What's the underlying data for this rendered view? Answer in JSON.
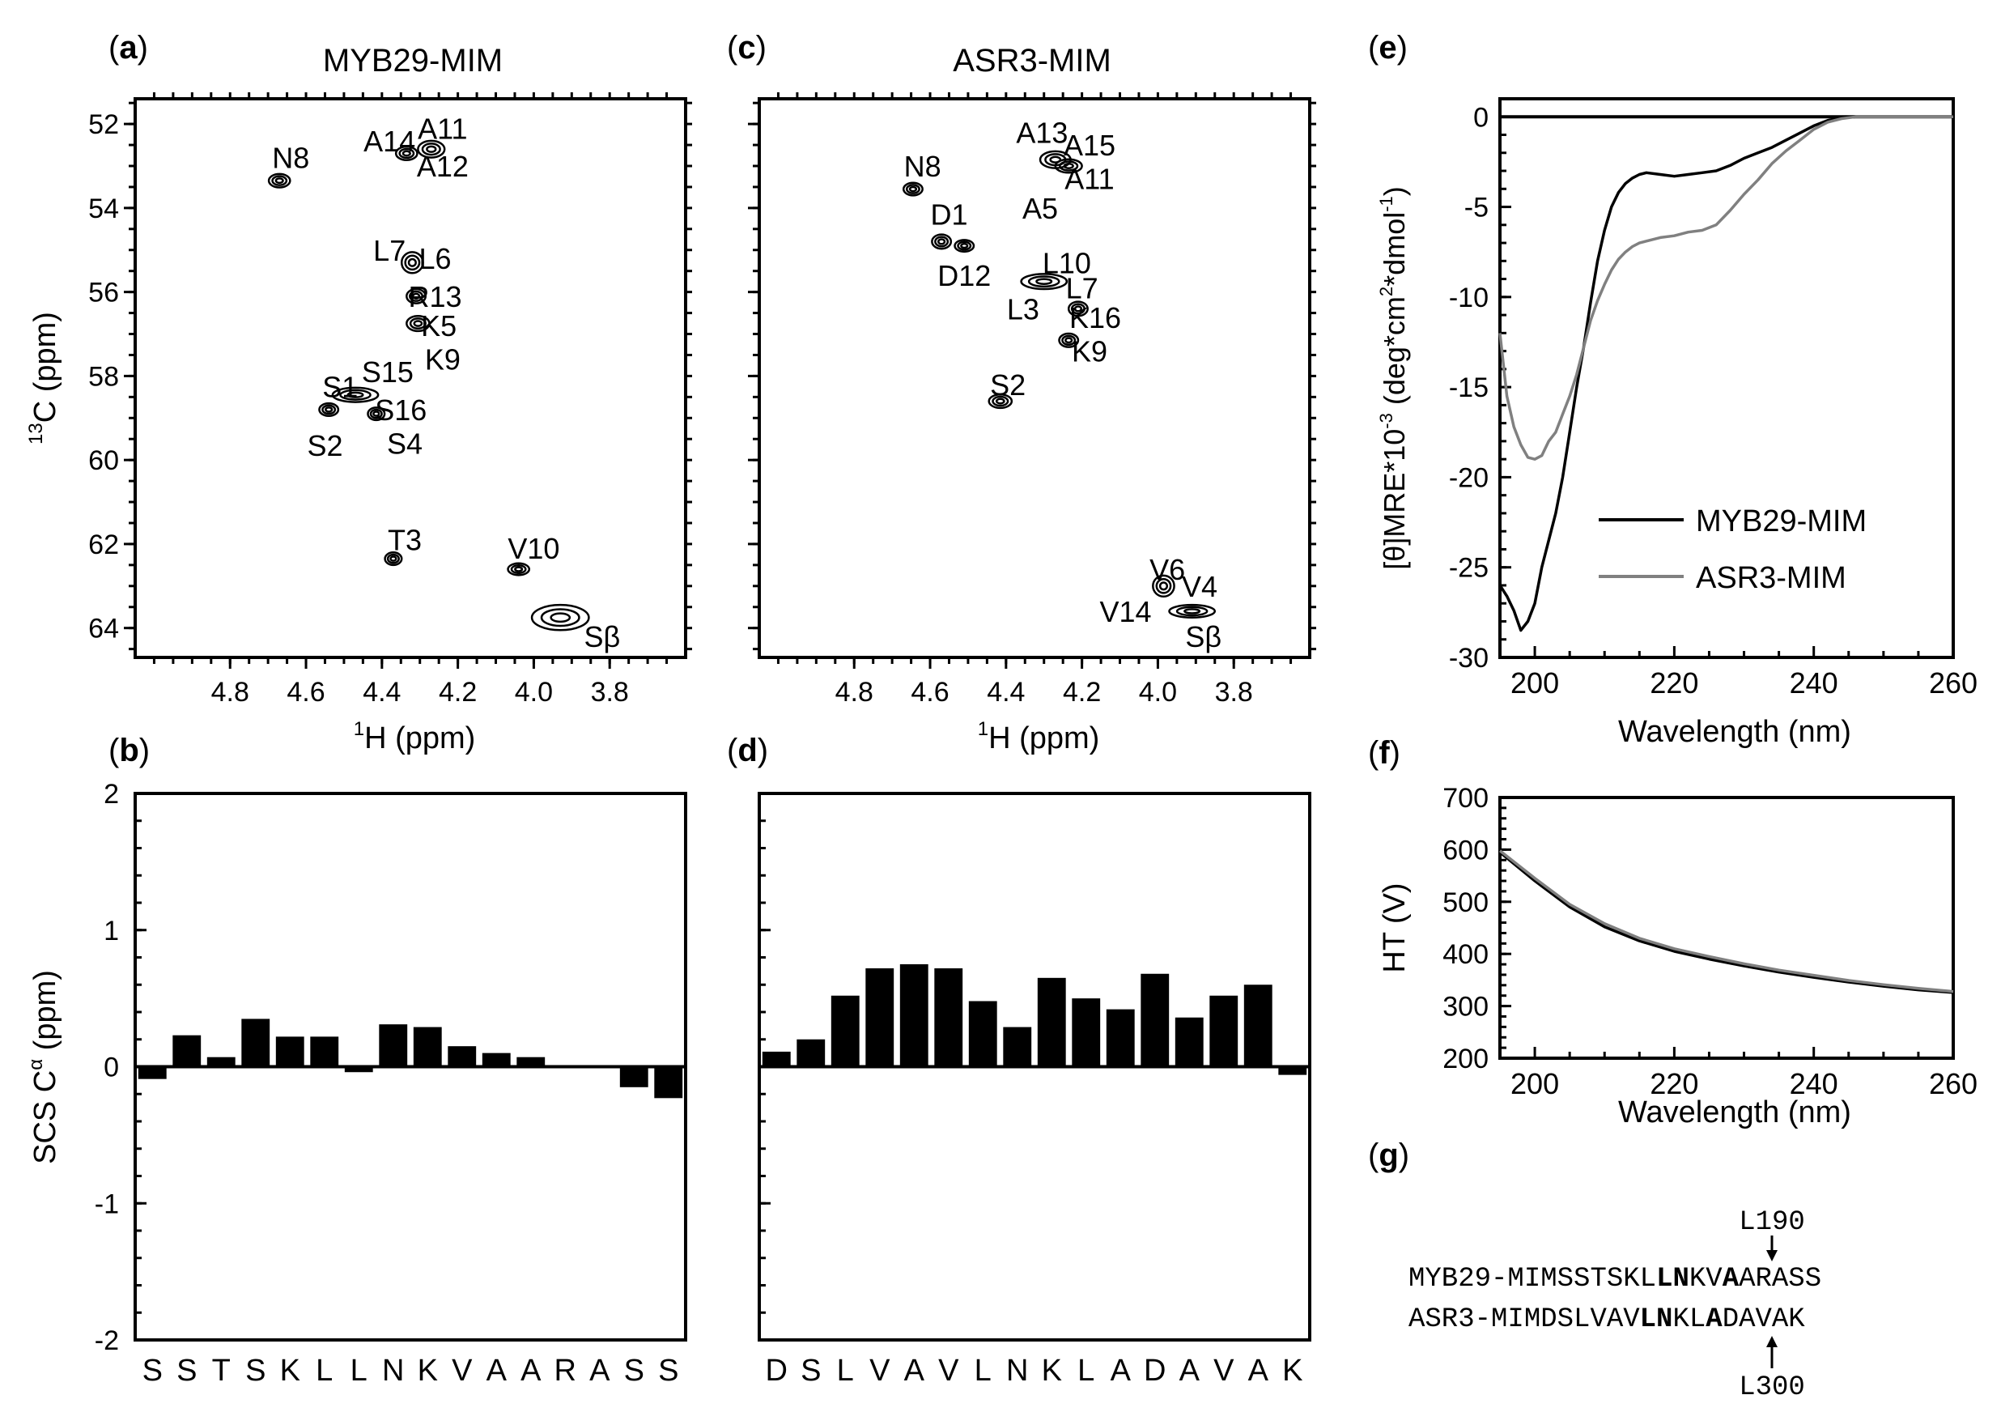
{
  "colors": {
    "black": "#000000",
    "gray": "#808080"
  },
  "panel_a": {
    "label_letter": "a",
    "title": "MYB29-MIM",
    "xlabel": "H (ppm)",
    "xlabel_sup": "1",
    "ylabel": "C (ppm)",
    "ylabel_sup": "13"
  },
  "panel_b": {
    "label_letter": "b",
    "ylabel": "SCS C",
    "ylabel_sup": "α",
    "ylabel_tail": " (ppm)"
  },
  "panel_c": {
    "label_letter": "c",
    "title": "ASR3-MIM",
    "xlabel": "H (ppm)",
    "xlabel_sup": "1"
  },
  "panel_d": {
    "label_letter": "d"
  },
  "panel_e": {
    "label_letter": "e",
    "xlabel": "Wavelength (nm)",
    "ylabel_pre": "[θ]MRE*10",
    "ylabel_sup1": "-3",
    "ylabel_mid1": " (deg*cm",
    "ylabel_sup2": "2",
    "ylabel_mid2": "*dmol",
    "ylabel_sup3": "-1",
    "ylabel_end": ")",
    "legend": [
      "MYB29-MIM",
      "ASR3-MIM"
    ]
  },
  "panel_f": {
    "label_letter": "f",
    "xlabel": "Wavelength (nm)",
    "ylabel": "HT (V)"
  },
  "panel_g": {
    "label_letter": "g",
    "top_marker": "L190",
    "bottom_marker": "L300",
    "rows": [
      {
        "name": "MYB29-MIM",
        "seq_pre": "SSTSKL",
        "seq_bold1": "LN",
        "seq_mid": "KV",
        "seq_bold2": "A",
        "seq_post": "ARASS"
      },
      {
        "name": "ASR3-MIM",
        "seq_pre": "DSLVAV",
        "seq_bold1": "LN",
        "seq_mid": "KL",
        "seq_bold2": "A",
        "seq_post": "DAVAK"
      }
    ]
  },
  "chart_data": [
    {
      "id": "a",
      "type": "scatter",
      "title": "MYB29-MIM",
      "xlabel": "1H (ppm)",
      "ylabel": "13C (ppm)",
      "xlim": [
        5.05,
        3.6
      ],
      "ylim": [
        51.4,
        64.7
      ],
      "xticks": [
        "4.8",
        "4.6",
        "4.4",
        "4.2",
        "4.0",
        "3.8"
      ],
      "xtick_values": [
        4.8,
        4.6,
        4.4,
        4.2,
        4.0,
        3.8
      ],
      "yticks": [
        "52",
        "54",
        "56",
        "58",
        "60",
        "62",
        "64"
      ],
      "ytick_values": [
        52,
        54,
        56,
        58,
        60,
        62,
        64
      ],
      "peaks": [
        {
          "x": 4.67,
          "y": 53.35,
          "w": 0.028,
          "h": 0.16
        },
        {
          "x": 4.335,
          "y": 52.7,
          "w": 0.028,
          "h": 0.16
        },
        {
          "x": 4.27,
          "y": 52.6,
          "w": 0.035,
          "h": 0.2
        },
        {
          "x": 4.32,
          "y": 55.3,
          "w": 0.028,
          "h": 0.25
        },
        {
          "x": 4.31,
          "y": 56.1,
          "w": 0.025,
          "h": 0.17
        },
        {
          "x": 4.305,
          "y": 56.75,
          "w": 0.03,
          "h": 0.18
        },
        {
          "x": 4.47,
          "y": 58.45,
          "w": 0.06,
          "h": 0.17
        },
        {
          "x": 4.54,
          "y": 58.8,
          "w": 0.025,
          "h": 0.15
        },
        {
          "x": 4.415,
          "y": 58.9,
          "w": 0.022,
          "h": 0.15
        },
        {
          "x": 4.37,
          "y": 62.35,
          "w": 0.022,
          "h": 0.15
        },
        {
          "x": 4.04,
          "y": 62.6,
          "w": 0.028,
          "h": 0.14
        },
        {
          "x": 3.93,
          "y": 63.75,
          "w": 0.075,
          "h": 0.3
        }
      ],
      "peak_labels": [
        {
          "text": "N8",
          "x": 4.64,
          "y": 52.8
        },
        {
          "text": "A14",
          "x": 4.38,
          "y": 52.4
        },
        {
          "text": "A11",
          "x": 4.24,
          "y": 52.1
        },
        {
          "text": "A12",
          "x": 4.24,
          "y": 53.0
        },
        {
          "text": "L7",
          "x": 4.38,
          "y": 55.0
        },
        {
          "text": "L6",
          "x": 4.26,
          "y": 55.2
        },
        {
          "text": "R13",
          "x": 4.26,
          "y": 56.1
        },
        {
          "text": "K5",
          "x": 4.25,
          "y": 56.8
        },
        {
          "text": "K9",
          "x": 4.24,
          "y": 57.6
        },
        {
          "text": "S15",
          "x": 4.385,
          "y": 57.9
        },
        {
          "text": "S1",
          "x": 4.51,
          "y": 58.25
        },
        {
          "text": "S16",
          "x": 4.35,
          "y": 58.8
        },
        {
          "text": "S2",
          "x": 4.55,
          "y": 59.65
        },
        {
          "text": "S4",
          "x": 4.34,
          "y": 59.6
        },
        {
          "text": "T3",
          "x": 4.34,
          "y": 61.9
        },
        {
          "text": "V10",
          "x": 4.0,
          "y": 62.1
        },
        {
          "text": "Sβ",
          "x": 3.82,
          "y": 64.2
        }
      ]
    },
    {
      "id": "b",
      "type": "bar",
      "ylabel": "SCS Cα (ppm)",
      "ylim": [
        -2,
        2
      ],
      "yticks": [
        "2",
        "1",
        "0",
        "-1",
        "-2"
      ],
      "ytick_values": [
        2,
        1,
        0,
        -1,
        -2
      ],
      "categories": [
        "S",
        "S",
        "T",
        "S",
        "K",
        "L",
        "L",
        "N",
        "K",
        "V",
        "A",
        "A",
        "R",
        "A",
        "S",
        "S"
      ],
      "values": [
        -0.09,
        0.23,
        0.07,
        0.35,
        0.22,
        0.22,
        -0.04,
        0.31,
        0.29,
        0.15,
        0.1,
        0.07,
        0.0,
        0.0,
        -0.15,
        -0.23
      ]
    },
    {
      "id": "c",
      "type": "scatter",
      "title": "ASR3-MIM",
      "xlabel": "1H (ppm)",
      "xlim": [
        5.05,
        3.6
      ],
      "ylim": [
        51.4,
        64.7
      ],
      "xticks": [
        "4.8",
        "4.6",
        "4.4",
        "4.2",
        "4.0",
        "3.8"
      ],
      "xtick_values": [
        4.8,
        4.6,
        4.4,
        4.2,
        4.0,
        3.8
      ],
      "peaks": [
        {
          "x": 4.645,
          "y": 53.55,
          "w": 0.025,
          "h": 0.15
        },
        {
          "x": 4.27,
          "y": 52.85,
          "w": 0.04,
          "h": 0.2
        },
        {
          "x": 4.235,
          "y": 53.0,
          "w": 0.035,
          "h": 0.16
        },
        {
          "x": 4.57,
          "y": 54.8,
          "w": 0.025,
          "h": 0.17
        },
        {
          "x": 4.51,
          "y": 54.9,
          "w": 0.025,
          "h": 0.14
        },
        {
          "x": 4.3,
          "y": 55.75,
          "w": 0.06,
          "h": 0.18
        },
        {
          "x": 4.21,
          "y": 56.4,
          "w": 0.025,
          "h": 0.17
        },
        {
          "x": 4.235,
          "y": 57.15,
          "w": 0.025,
          "h": 0.16
        },
        {
          "x": 4.415,
          "y": 58.6,
          "w": 0.03,
          "h": 0.16
        },
        {
          "x": 3.985,
          "y": 63.0,
          "w": 0.028,
          "h": 0.25
        },
        {
          "x": 3.91,
          "y": 63.6,
          "w": 0.06,
          "h": 0.15
        }
      ],
      "peak_labels": [
        {
          "text": "A13",
          "x": 4.305,
          "y": 52.2
        },
        {
          "text": "A15",
          "x": 4.18,
          "y": 52.5
        },
        {
          "text": "A11",
          "x": 4.18,
          "y": 53.3
        },
        {
          "text": "A5",
          "x": 4.31,
          "y": 54.0
        },
        {
          "text": "N8",
          "x": 4.62,
          "y": 53.0
        },
        {
          "text": "D1",
          "x": 4.55,
          "y": 54.15
        },
        {
          "text": "D12",
          "x": 4.51,
          "y": 55.6
        },
        {
          "text": "L10",
          "x": 4.24,
          "y": 55.3
        },
        {
          "text": "L7",
          "x": 4.2,
          "y": 55.9
        },
        {
          "text": "L3",
          "x": 4.355,
          "y": 56.4
        },
        {
          "text": "K16",
          "x": 4.165,
          "y": 56.6
        },
        {
          "text": "K9",
          "x": 4.18,
          "y": 57.4
        },
        {
          "text": "S2",
          "x": 4.395,
          "y": 58.2
        },
        {
          "text": "V6",
          "x": 3.975,
          "y": 62.6
        },
        {
          "text": "V4",
          "x": 3.89,
          "y": 63.0
        },
        {
          "text": "V14",
          "x": 4.085,
          "y": 63.6
        },
        {
          "text": "Sβ",
          "x": 3.88,
          "y": 64.2
        }
      ]
    },
    {
      "id": "d",
      "type": "bar",
      "ylim": [
        -2,
        2
      ],
      "categories": [
        "D",
        "S",
        "L",
        "V",
        "A",
        "V",
        "L",
        "N",
        "K",
        "L",
        "A",
        "D",
        "A",
        "V",
        "A",
        "K"
      ],
      "values": [
        0.11,
        0.2,
        0.52,
        0.72,
        0.75,
        0.72,
        0.48,
        0.29,
        0.65,
        0.5,
        0.42,
        0.68,
        0.36,
        0.52,
        0.6,
        -0.06
      ]
    },
    {
      "id": "e",
      "type": "line",
      "xlabel": "Wavelength (nm)",
      "ylabel": "[θ]MRE*10-3 (deg*cm2*dmol-1)",
      "xlim": [
        195,
        260
      ],
      "ylim": [
        -30,
        1
      ],
      "xticks": [
        "200",
        "220",
        "240",
        "260"
      ],
      "xtick_values": [
        200,
        220,
        240,
        260
      ],
      "yticks": [
        "0",
        "-5",
        "-10",
        "-15",
        "-20",
        "-25",
        "-30"
      ],
      "ytick_values": [
        0,
        -5,
        -10,
        -15,
        -20,
        -25,
        -30
      ],
      "legend": [
        "MYB29-MIM",
        "ASR3-MIM"
      ],
      "series": [
        {
          "name": "MYB29-MIM",
          "color": "#000000",
          "x": [
            195,
            196,
            197,
            198,
            199,
            200,
            201,
            202,
            203,
            204,
            205,
            206,
            207,
            208,
            209,
            210,
            211,
            212,
            213,
            214,
            215,
            216,
            218,
            220,
            222,
            224,
            226,
            228,
            230,
            232,
            234,
            236,
            238,
            240,
            242,
            244,
            246,
            248,
            250,
            252,
            255,
            258,
            260
          ],
          "y": [
            -26.0,
            -26.6,
            -27.4,
            -28.5,
            -28.0,
            -27.0,
            -25.0,
            -23.5,
            -22.0,
            -20.0,
            -17.5,
            -15.0,
            -12.8,
            -10.3,
            -8.0,
            -6.3,
            -5.0,
            -4.2,
            -3.7,
            -3.4,
            -3.2,
            -3.1,
            -3.2,
            -3.3,
            -3.2,
            -3.1,
            -3.0,
            -2.7,
            -2.3,
            -2.0,
            -1.7,
            -1.3,
            -0.9,
            -0.5,
            -0.2,
            -0.05,
            0.0,
            0.0,
            0.0,
            0.0,
            0.0,
            0.0,
            0.0
          ]
        },
        {
          "name": "ASR3-MIM",
          "color": "#808080",
          "x": [
            195,
            196,
            197,
            198,
            199,
            200,
            201,
            202,
            203,
            204,
            205,
            206,
            207,
            208,
            209,
            210,
            211,
            212,
            213,
            214,
            215,
            216,
            218,
            220,
            222,
            224,
            226,
            228,
            230,
            232,
            234,
            236,
            238,
            240,
            242,
            244,
            246,
            248,
            250,
            252,
            255,
            258,
            260
          ],
          "y": [
            -12.0,
            -15.5,
            -17.2,
            -18.2,
            -18.9,
            -19.0,
            -18.8,
            -18.0,
            -17.5,
            -16.5,
            -15.5,
            -14.3,
            -12.8,
            -11.3,
            -10.2,
            -9.3,
            -8.5,
            -7.9,
            -7.5,
            -7.2,
            -7.0,
            -6.9,
            -6.7,
            -6.6,
            -6.4,
            -6.3,
            -6.0,
            -5.2,
            -4.3,
            -3.5,
            -2.6,
            -1.9,
            -1.3,
            -0.7,
            -0.3,
            -0.1,
            0.0,
            0.0,
            0.0,
            0.0,
            0.0,
            0.0,
            0.0
          ]
        }
      ]
    },
    {
      "id": "f",
      "type": "line",
      "xlabel": "Wavelength (nm)",
      "ylabel": "HT (V)",
      "xlim": [
        195,
        260
      ],
      "ylim": [
        200,
        700
      ],
      "xticks": [
        "200",
        "220",
        "240",
        "260"
      ],
      "xtick_values": [
        200,
        220,
        240,
        260
      ],
      "yticks": [
        "700",
        "600",
        "500",
        "400",
        "300",
        "200"
      ],
      "ytick_values": [
        700,
        600,
        500,
        400,
        300,
        200
      ],
      "series": [
        {
          "name": "MYB29-MIM",
          "color": "#000000",
          "x": [
            195,
            200,
            205,
            210,
            215,
            220,
            225,
            230,
            235,
            240,
            245,
            250,
            255,
            260
          ],
          "y": [
            595,
            540,
            490,
            452,
            425,
            405,
            390,
            377,
            365,
            355,
            346,
            338,
            331,
            326
          ]
        },
        {
          "name": "ASR3-MIM",
          "color": "#808080",
          "x": [
            195,
            200,
            205,
            210,
            215,
            220,
            225,
            230,
            235,
            240,
            245,
            250,
            255,
            260
          ],
          "y": [
            598,
            545,
            495,
            458,
            430,
            410,
            395,
            381,
            369,
            359,
            349,
            341,
            334,
            328
          ]
        }
      ]
    }
  ]
}
